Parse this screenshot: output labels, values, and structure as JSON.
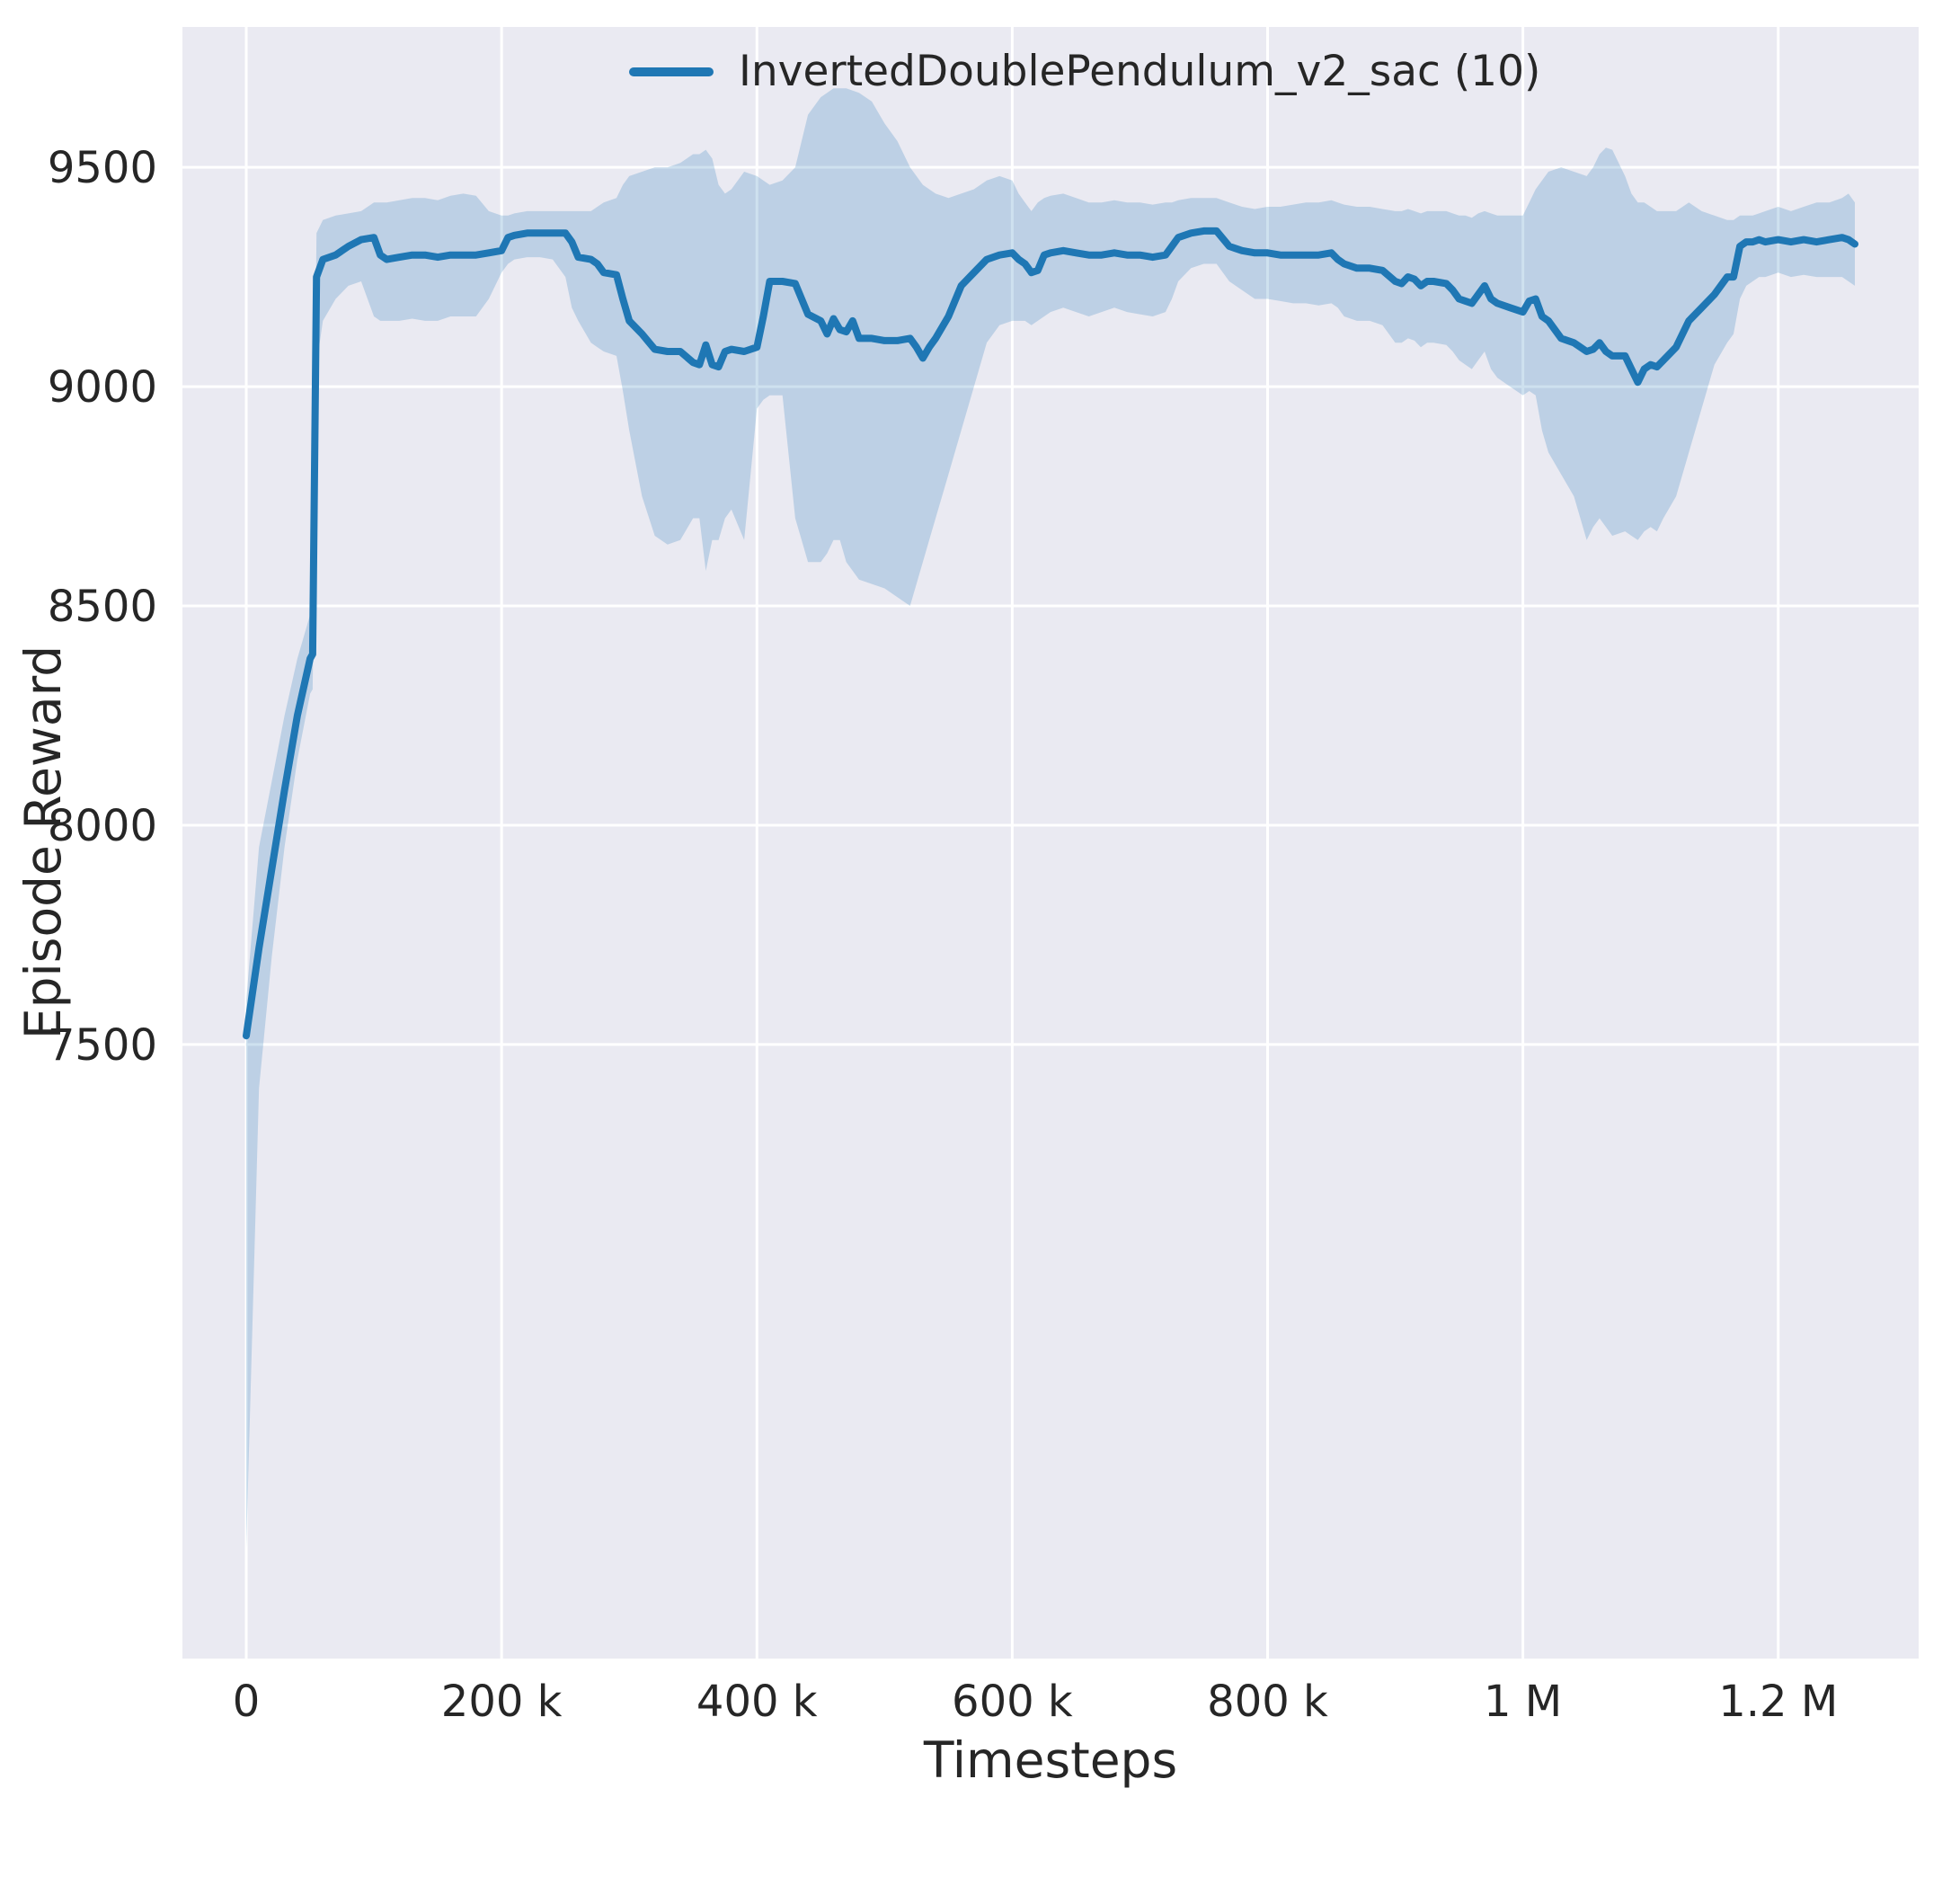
{
  "figure": {
    "background": "#ffffff",
    "axes_background": "#eaeaf2",
    "grid_color": "#ffffff",
    "text_color": "#262626"
  },
  "chart_data": {
    "type": "line",
    "xlabel": "Timesteps",
    "ylabel": "Episode Reward",
    "grid": true,
    "legend_position": "upper center",
    "xlim": [
      -50000,
      1310000
    ],
    "ylim": [
      6100,
      9820
    ],
    "xticks": {
      "values": [
        0,
        200000,
        400000,
        600000,
        800000,
        1000000,
        1200000
      ],
      "labels": [
        "0",
        "200 k",
        "400 k",
        "600 k",
        "800 k",
        "1 M",
        "1.2 M"
      ]
    },
    "yticks": {
      "values": [
        7500,
        8000,
        8500,
        9000,
        9500
      ],
      "labels": [
        "7500",
        "8000",
        "8500",
        "9000",
        "9500"
      ]
    },
    "series": [
      {
        "name": "InvertedDoublePendulum_v2_sac (10)",
        "color": "#1f77b4",
        "band_opacity": 0.22,
        "line_width": 8,
        "point_order": [
          "timestep",
          "mean_reward",
          "band_lower",
          "band_upper"
        ],
        "points": [
          [
            0,
            7520,
            6350,
            7600
          ],
          [
            10000,
            7720,
            7400,
            7950
          ],
          [
            20000,
            7900,
            7700,
            8100
          ],
          [
            30000,
            8080,
            7950,
            8250
          ],
          [
            40000,
            8250,
            8150,
            8380
          ],
          [
            50000,
            8380,
            8300,
            8480
          ],
          [
            52000,
            8390,
            8310,
            8500
          ],
          [
            55000,
            9250,
            9050,
            9350
          ],
          [
            60000,
            9290,
            9150,
            9380
          ],
          [
            70000,
            9300,
            9200,
            9390
          ],
          [
            80000,
            9320,
            9230,
            9395
          ],
          [
            90000,
            9335,
            9240,
            9400
          ],
          [
            100000,
            9340,
            9160,
            9420
          ],
          [
            105000,
            9300,
            9150,
            9420
          ],
          [
            110000,
            9290,
            9150,
            9420
          ],
          [
            120000,
            9295,
            9150,
            9425
          ],
          [
            130000,
            9300,
            9155,
            9430
          ],
          [
            140000,
            9300,
            9150,
            9430
          ],
          [
            150000,
            9295,
            9150,
            9425
          ],
          [
            160000,
            9300,
            9160,
            9435
          ],
          [
            170000,
            9300,
            9160,
            9440
          ],
          [
            180000,
            9300,
            9160,
            9435
          ],
          [
            190000,
            9305,
            9200,
            9400
          ],
          [
            200000,
            9310,
            9260,
            9390
          ],
          [
            205000,
            9340,
            9280,
            9390
          ],
          [
            210000,
            9345,
            9290,
            9395
          ],
          [
            220000,
            9350,
            9295,
            9400
          ],
          [
            230000,
            9350,
            9295,
            9400
          ],
          [
            240000,
            9350,
            9290,
            9400
          ],
          [
            250000,
            9350,
            9250,
            9400
          ],
          [
            255000,
            9330,
            9180,
            9400
          ],
          [
            260000,
            9295,
            9150,
            9400
          ],
          [
            270000,
            9290,
            9100,
            9400
          ],
          [
            275000,
            9280,
            9090,
            9410
          ],
          [
            280000,
            9260,
            9080,
            9420
          ],
          [
            290000,
            9255,
            9070,
            9430
          ],
          [
            295000,
            9200,
            8990,
            9460
          ],
          [
            300000,
            9150,
            8900,
            9480
          ],
          [
            310000,
            9120,
            8750,
            9490
          ],
          [
            320000,
            9085,
            8660,
            9500
          ],
          [
            330000,
            9080,
            8640,
            9500
          ],
          [
            340000,
            9080,
            8650,
            9510
          ],
          [
            350000,
            9055,
            8700,
            9530
          ],
          [
            355000,
            9050,
            8700,
            9530
          ],
          [
            360000,
            9095,
            8580,
            9540
          ],
          [
            365000,
            9050,
            8650,
            9520
          ],
          [
            370000,
            9045,
            8650,
            9460
          ],
          [
            375000,
            9080,
            8700,
            9440
          ],
          [
            380000,
            9085,
            8720,
            9450
          ],
          [
            390000,
            9080,
            8650,
            9490
          ],
          [
            400000,
            9090,
            8950,
            9480
          ],
          [
            405000,
            9160,
            8970,
            9470
          ],
          [
            410000,
            9240,
            8980,
            9460
          ],
          [
            420000,
            9240,
            8980,
            9470
          ],
          [
            430000,
            9235,
            8700,
            9500
          ],
          [
            435000,
            9200,
            8650,
            9560
          ],
          [
            440000,
            9165,
            8600,
            9620
          ],
          [
            450000,
            9150,
            8600,
            9660
          ],
          [
            455000,
            9120,
            8620,
            9670
          ],
          [
            460000,
            9155,
            8650,
            9680
          ],
          [
            465000,
            9130,
            8650,
            9680
          ],
          [
            470000,
            9125,
            8600,
            9680
          ],
          [
            475000,
            9150,
            8580,
            9675
          ],
          [
            480000,
            9110,
            8560,
            9670
          ],
          [
            490000,
            9110,
            8550,
            9650
          ],
          [
            500000,
            9105,
            8540,
            9600
          ],
          [
            510000,
            9105,
            8520,
            9560
          ],
          [
            520000,
            9110,
            8500,
            9500
          ],
          [
            525000,
            9090,
            8550,
            9480
          ],
          [
            530000,
            9065,
            8600,
            9460
          ],
          [
            535000,
            9090,
            8650,
            9450
          ],
          [
            540000,
            9110,
            8700,
            9440
          ],
          [
            550000,
            9160,
            8800,
            9430
          ],
          [
            560000,
            9230,
            8900,
            9440
          ],
          [
            570000,
            9260,
            9000,
            9450
          ],
          [
            580000,
            9290,
            9100,
            9470
          ],
          [
            590000,
            9300,
            9140,
            9480
          ],
          [
            600000,
            9305,
            9150,
            9470
          ],
          [
            605000,
            9290,
            9150,
            9440
          ],
          [
            610000,
            9280,
            9150,
            9420
          ],
          [
            615000,
            9260,
            9140,
            9400
          ],
          [
            620000,
            9265,
            9150,
            9420
          ],
          [
            625000,
            9300,
            9160,
            9430
          ],
          [
            630000,
            9305,
            9170,
            9435
          ],
          [
            640000,
            9310,
            9180,
            9440
          ],
          [
            650000,
            9305,
            9170,
            9430
          ],
          [
            660000,
            9300,
            9160,
            9420
          ],
          [
            670000,
            9300,
            9170,
            9420
          ],
          [
            680000,
            9305,
            9180,
            9425
          ],
          [
            690000,
            9300,
            9170,
            9420
          ],
          [
            700000,
            9300,
            9165,
            9420
          ],
          [
            710000,
            9295,
            9160,
            9415
          ],
          [
            720000,
            9300,
            9170,
            9420
          ],
          [
            725000,
            9320,
            9200,
            9420
          ],
          [
            730000,
            9340,
            9240,
            9425
          ],
          [
            740000,
            9350,
            9270,
            9430
          ],
          [
            750000,
            9355,
            9280,
            9430
          ],
          [
            760000,
            9355,
            9280,
            9430
          ],
          [
            770000,
            9320,
            9240,
            9420
          ],
          [
            775000,
            9315,
            9230,
            9415
          ],
          [
            780000,
            9310,
            9220,
            9410
          ],
          [
            790000,
            9305,
            9200,
            9405
          ],
          [
            800000,
            9305,
            9200,
            9410
          ],
          [
            810000,
            9300,
            9195,
            9410
          ],
          [
            820000,
            9300,
            9190,
            9415
          ],
          [
            830000,
            9300,
            9190,
            9420
          ],
          [
            840000,
            9300,
            9185,
            9420
          ],
          [
            850000,
            9305,
            9190,
            9425
          ],
          [
            855000,
            9290,
            9180,
            9420
          ],
          [
            860000,
            9280,
            9160,
            9415
          ],
          [
            870000,
            9270,
            9150,
            9410
          ],
          [
            880000,
            9270,
            9150,
            9410
          ],
          [
            890000,
            9265,
            9140,
            9405
          ],
          [
            900000,
            9240,
            9100,
            9400
          ],
          [
            905000,
            9235,
            9100,
            9400
          ],
          [
            910000,
            9250,
            9110,
            9405
          ],
          [
            915000,
            9245,
            9105,
            9400
          ],
          [
            920000,
            9230,
            9090,
            9395
          ],
          [
            925000,
            9240,
            9100,
            9400
          ],
          [
            930000,
            9240,
            9100,
            9400
          ],
          [
            940000,
            9235,
            9095,
            9400
          ],
          [
            945000,
            9220,
            9080,
            9395
          ],
          [
            950000,
            9200,
            9060,
            9390
          ],
          [
            955000,
            9195,
            9050,
            9390
          ],
          [
            960000,
            9190,
            9040,
            9385
          ],
          [
            965000,
            9210,
            9060,
            9395
          ],
          [
            970000,
            9230,
            9080,
            9400
          ],
          [
            975000,
            9200,
            9040,
            9395
          ],
          [
            980000,
            9190,
            9020,
            9390
          ],
          [
            990000,
            9180,
            9000,
            9390
          ],
          [
            1000000,
            9170,
            8980,
            9390
          ],
          [
            1005000,
            9195,
            8990,
            9420
          ],
          [
            1010000,
            9200,
            8980,
            9450
          ],
          [
            1015000,
            9160,
            8900,
            9470
          ],
          [
            1020000,
            9150,
            8850,
            9490
          ],
          [
            1030000,
            9110,
            8800,
            9500
          ],
          [
            1040000,
            9100,
            8750,
            9490
          ],
          [
            1050000,
            9080,
            8650,
            9480
          ],
          [
            1055000,
            9085,
            8680,
            9500
          ],
          [
            1060000,
            9100,
            8700,
            9530
          ],
          [
            1065000,
            9080,
            8680,
            9545
          ],
          [
            1070000,
            9070,
            8660,
            9540
          ],
          [
            1080000,
            9070,
            8670,
            9480
          ],
          [
            1085000,
            9040,
            8660,
            9440
          ],
          [
            1090000,
            9010,
            8650,
            9420
          ],
          [
            1095000,
            9040,
            8670,
            9420
          ],
          [
            1100000,
            9050,
            8680,
            9410
          ],
          [
            1105000,
            9045,
            8670,
            9400
          ],
          [
            1110000,
            9060,
            8700,
            9400
          ],
          [
            1120000,
            9090,
            8750,
            9400
          ],
          [
            1130000,
            9150,
            8850,
            9420
          ],
          [
            1140000,
            9180,
            8950,
            9400
          ],
          [
            1150000,
            9210,
            9050,
            9390
          ],
          [
            1160000,
            9250,
            9100,
            9380
          ],
          [
            1165000,
            9250,
            9120,
            9380
          ],
          [
            1170000,
            9320,
            9200,
            9390
          ],
          [
            1175000,
            9330,
            9230,
            9390
          ],
          [
            1180000,
            9330,
            9240,
            9390
          ],
          [
            1185000,
            9335,
            9250,
            9395
          ],
          [
            1190000,
            9330,
            9250,
            9400
          ],
          [
            1200000,
            9335,
            9260,
            9410
          ],
          [
            1210000,
            9330,
            9250,
            9400
          ],
          [
            1220000,
            9335,
            9255,
            9410
          ],
          [
            1230000,
            9330,
            9250,
            9420
          ],
          [
            1240000,
            9335,
            9250,
            9420
          ],
          [
            1250000,
            9340,
            9250,
            9430
          ],
          [
            1255000,
            9335,
            9240,
            9440
          ],
          [
            1260000,
            9325,
            9230,
            9420
          ]
        ]
      }
    ]
  }
}
